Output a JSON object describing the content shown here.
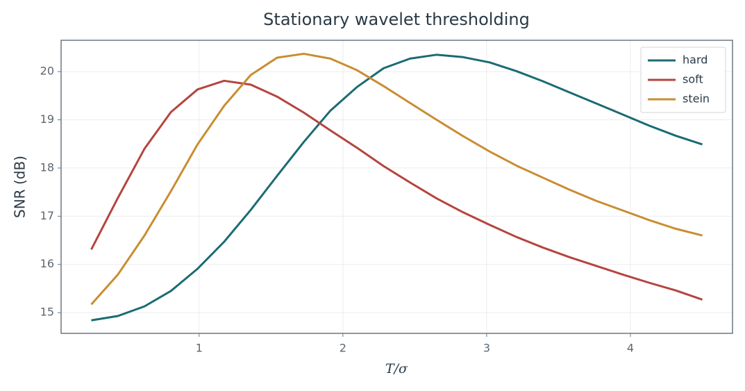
{
  "chart_data": {
    "type": "line",
    "title": "Stationary wavelet thresholding",
    "xlabel": "T/σ",
    "ylabel": "SNR (dB)",
    "x": [
      0.25,
      0.435,
      0.62,
      0.804,
      0.989,
      1.174,
      1.359,
      1.543,
      1.728,
      1.913,
      2.098,
      2.283,
      2.467,
      2.652,
      2.837,
      3.022,
      3.207,
      3.391,
      3.576,
      3.761,
      3.946,
      4.13,
      4.315,
      4.5
    ],
    "series": [
      {
        "name": "hard",
        "color": "#1a6b73",
        "values": [
          14.84,
          14.93,
          15.13,
          15.45,
          15.91,
          16.47,
          17.13,
          17.84,
          18.54,
          19.19,
          19.68,
          20.07,
          20.27,
          20.35,
          20.3,
          20.19,
          20.01,
          19.8,
          19.57,
          19.34,
          19.11,
          18.88,
          18.67,
          18.49
        ]
      },
      {
        "name": "soft",
        "color": "#b5443f",
        "values": [
          16.31,
          17.38,
          18.4,
          19.16,
          19.63,
          19.81,
          19.73,
          19.48,
          19.15,
          18.78,
          18.42,
          18.04,
          17.7,
          17.37,
          17.08,
          16.82,
          16.57,
          16.35,
          16.15,
          15.97,
          15.79,
          15.62,
          15.46,
          15.27
        ]
      },
      {
        "name": "stein",
        "color": "#c98d30",
        "values": [
          15.17,
          15.79,
          16.6,
          17.52,
          18.49,
          19.29,
          19.93,
          20.29,
          20.37,
          20.27,
          20.03,
          19.7,
          19.35,
          19.0,
          18.66,
          18.34,
          18.05,
          17.8,
          17.55,
          17.32,
          17.12,
          16.92,
          16.74,
          16.6
        ]
      }
    ],
    "xlim": [
      0.04,
      4.71
    ],
    "xticks": [
      1,
      2,
      3,
      4
    ],
    "ylim": [
      14.57,
      20.65
    ],
    "yticks": [
      15,
      16,
      17,
      18,
      19,
      20
    ],
    "grid": true,
    "legend": "upper right"
  }
}
